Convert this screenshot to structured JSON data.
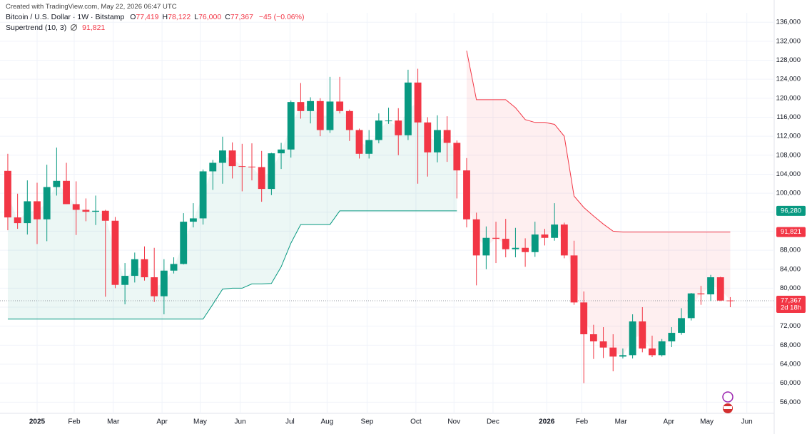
{
  "chart_data": {
    "type": "candlestick",
    "credit": "Created with TradingView.com, May 22, 2026 06:47 UTC",
    "title": "Bitcoin / U.S. Dollar · 1W · Bitstamp",
    "ohlc_labels": [
      {
        "key": "O",
        "value": "77,419"
      },
      {
        "key": "H",
        "value": "78,122"
      },
      {
        "key": "L",
        "value": "76,000"
      },
      {
        "key": "C",
        "value": "77,367"
      }
    ],
    "change_label": "−45 (−0.06%)",
    "up_color": "#089981",
    "down_color": "#f23645",
    "open": [
      104700,
      94900,
      93700,
      98300,
      94500,
      101300,
      102600,
      97700,
      96500,
      96100,
      96300,
      94200,
      80700,
      82600,
      86100,
      82300,
      78300,
      83700,
      85100,
      94000,
      94700,
      104600,
      106400,
      109000,
      105700,
      105600,
      105500,
      100900,
      108400,
      109200,
      119200,
      117300,
      119400,
      113300,
      119300,
      117300,
      113300,
      108300,
      111200,
      115300,
      115300,
      112200,
      123300,
      114900,
      108600,
      113300,
      110600,
      104800,
      94500,
      86900,
      90600,
      90400,
      88200,
      88500,
      87600,
      91300,
      90600,
      93400,
      86900,
      77000,
      70300,
      68800,
      67500,
      65600,
      65900,
      73000,
      67300,
      65900,
      68800,
      70600,
      73700,
      78900,
      78700,
      82300,
      77419
    ],
    "high": [
      108300,
      99900,
      102700,
      102200,
      106000,
      109600,
      106400,
      102500,
      98900,
      99500,
      96500,
      95000,
      85300,
      87500,
      88800,
      88500,
      86100,
      86500,
      95800,
      97900,
      105000,
      107000,
      111900,
      110700,
      110400,
      110500,
      108900,
      108500,
      110600,
      119500,
      123200,
      120200,
      120000,
      124500,
      124500,
      117600,
      113600,
      113300,
      116800,
      118000,
      117900,
      126000,
      126200,
      116000,
      116400,
      116200,
      111100,
      107400,
      95900,
      93000,
      94000,
      94600,
      92700,
      90500,
      94000,
      92500,
      97900,
      93800,
      90000,
      79300,
      72300,
      71800,
      70300,
      67300,
      74500,
      76000,
      70000,
      69300,
      71800,
      75800,
      79000,
      80500,
      82800,
      82400,
      78122
    ],
    "low": [
      92200,
      92500,
      91300,
      89300,
      89900,
      99500,
      97700,
      91200,
      94100,
      93300,
      78200,
      80000,
      76600,
      81200,
      81600,
      77100,
      74500,
      83100,
      85000,
      92800,
      93400,
      100700,
      102000,
      103100,
      100400,
      102700,
      98200,
      99600,
      105100,
      107500,
      115700,
      114700,
      112000,
      112700,
      116800,
      111000,
      107300,
      107300,
      110500,
      114600,
      108000,
      111200,
      102000,
      103500,
      106500,
      106600,
      98900,
      92800,
      80600,
      84000,
      85300,
      86500,
      86500,
      84500,
      86600,
      89000,
      90000,
      86300,
      76500,
      60000,
      65100,
      65300,
      62500,
      65200,
      65200,
      66500,
      65500,
      65600,
      67600,
      70200,
      73200,
      76500,
      77300,
      77300,
      76000
    ],
    "close": [
      94900,
      93700,
      98300,
      94500,
      101300,
      102600,
      97700,
      96500,
      96100,
      96300,
      94200,
      80700,
      82600,
      86100,
      82300,
      78300,
      83700,
      85100,
      94000,
      94700,
      104600,
      106400,
      109000,
      105700,
      105600,
      105500,
      100900,
      108400,
      109200,
      119200,
      117300,
      119400,
      113300,
      119300,
      117300,
      113300,
      108300,
      111200,
      115300,
      115300,
      112200,
      123300,
      114900,
      108600,
      113300,
      110600,
      104800,
      94500,
      86900,
      90600,
      90400,
      88200,
      88500,
      87600,
      91300,
      90600,
      93400,
      86900,
      77000,
      70300,
      68800,
      67500,
      65600,
      65900,
      73000,
      67300,
      65900,
      68800,
      70600,
      73700,
      78900,
      78700,
      82300,
      77400,
      77367
    ],
    "last_label": "77,367",
    "countdown": "2d 18h",
    "supertrend": {
      "name": "Supertrend (10, 3)",
      "up_color": "#089981",
      "down_color": "#f23645",
      "up": [
        73500,
        73500,
        73500,
        73500,
        73500,
        73500,
        73500,
        73500,
        73500,
        73500,
        73500,
        73500,
        73500,
        73500,
        73500,
        73500,
        73500,
        73500,
        73500,
        73500,
        73500,
        76600,
        79800,
        80000,
        80000,
        80900,
        80900,
        81000,
        84500,
        89500,
        93400,
        93400,
        93400,
        93400,
        96280,
        96280,
        96280,
        96280,
        96280,
        96280,
        96280,
        96280,
        96280,
        96280,
        96280,
        96280,
        96280,
        null,
        null,
        null,
        null,
        null,
        null,
        null,
        null,
        null,
        null,
        null,
        null,
        null,
        null,
        null,
        null,
        null,
        null,
        null,
        null,
        null,
        null,
        null,
        null,
        null,
        null,
        null,
        null
      ],
      "down": [
        null,
        null,
        null,
        null,
        null,
        null,
        null,
        null,
        null,
        null,
        null,
        null,
        null,
        null,
        null,
        null,
        null,
        null,
        null,
        null,
        null,
        null,
        null,
        null,
        null,
        null,
        null,
        null,
        null,
        null,
        null,
        null,
        null,
        null,
        null,
        null,
        null,
        null,
        null,
        null,
        null,
        null,
        null,
        null,
        null,
        null,
        null,
        130000,
        119700,
        119700,
        119700,
        119700,
        118000,
        115500,
        114900,
        114900,
        114500,
        112000,
        99400,
        97000,
        95200,
        93500,
        92000,
        91821,
        91821,
        91821,
        91821,
        91821,
        91821,
        91821,
        91821,
        91821,
        91821,
        91821,
        91821
      ],
      "up_label": "96,280",
      "down_label": "91,821"
    },
    "xlim": [
      -0.8,
      78.5
    ],
    "xticks": [
      {
        "value": 3.0,
        "label": "2025"
      },
      {
        "value": 6.8,
        "label": "Feb"
      },
      {
        "value": 10.8,
        "label": "Mar"
      },
      {
        "value": 15.8,
        "label": "Apr"
      },
      {
        "value": 19.7,
        "label": "May"
      },
      {
        "value": 23.8,
        "label": "Jun"
      },
      {
        "value": 28.9,
        "label": "Jul"
      },
      {
        "value": 32.7,
        "label": "Aug"
      },
      {
        "value": 36.8,
        "label": "Sep"
      },
      {
        "value": 41.8,
        "label": "Oct"
      },
      {
        "value": 45.7,
        "label": "Nov"
      },
      {
        "value": 49.7,
        "label": "Dec"
      },
      {
        "value": 55.2,
        "label": "2026"
      },
      {
        "value": 58.8,
        "label": "Feb"
      },
      {
        "value": 62.8,
        "label": "Mar"
      },
      {
        "value": 67.7,
        "label": "Apr"
      },
      {
        "value": 71.6,
        "label": "May"
      },
      {
        "value": 75.7,
        "label": "Jun"
      }
    ],
    "ylim": [
      53650,
      137980
    ],
    "yticks": [
      {
        "value": 56000,
        "label": "56,000"
      },
      {
        "value": 60000,
        "label": "60,000"
      },
      {
        "value": 64000,
        "label": "64,000"
      },
      {
        "value": 68000,
        "label": "68,000"
      },
      {
        "value": 72000,
        "label": "72,000"
      },
      {
        "value": 76000,
        "label": "76,000"
      },
      {
        "value": 80000,
        "label": "80,000"
      },
      {
        "value": 84000,
        "label": "84,000"
      },
      {
        "value": 88000,
        "label": "88,000"
      },
      {
        "value": 92000,
        "label": "92,000"
      },
      {
        "value": 96000,
        "label": "96,000"
      },
      {
        "value": 100000,
        "label": "100,000"
      },
      {
        "value": 104000,
        "label": "104,000"
      },
      {
        "value": 108000,
        "label": "108,000"
      },
      {
        "value": 112000,
        "label": "112,000"
      },
      {
        "value": 116000,
        "label": "116,000"
      },
      {
        "value": 120000,
        "label": "120,000"
      },
      {
        "value": 124000,
        "label": "124,000"
      },
      {
        "value": 128000,
        "label": "128,000"
      },
      {
        "value": 132000,
        "label": "132,000"
      },
      {
        "value": 136000,
        "label": "136,000"
      }
    ],
    "grid": true
  }
}
